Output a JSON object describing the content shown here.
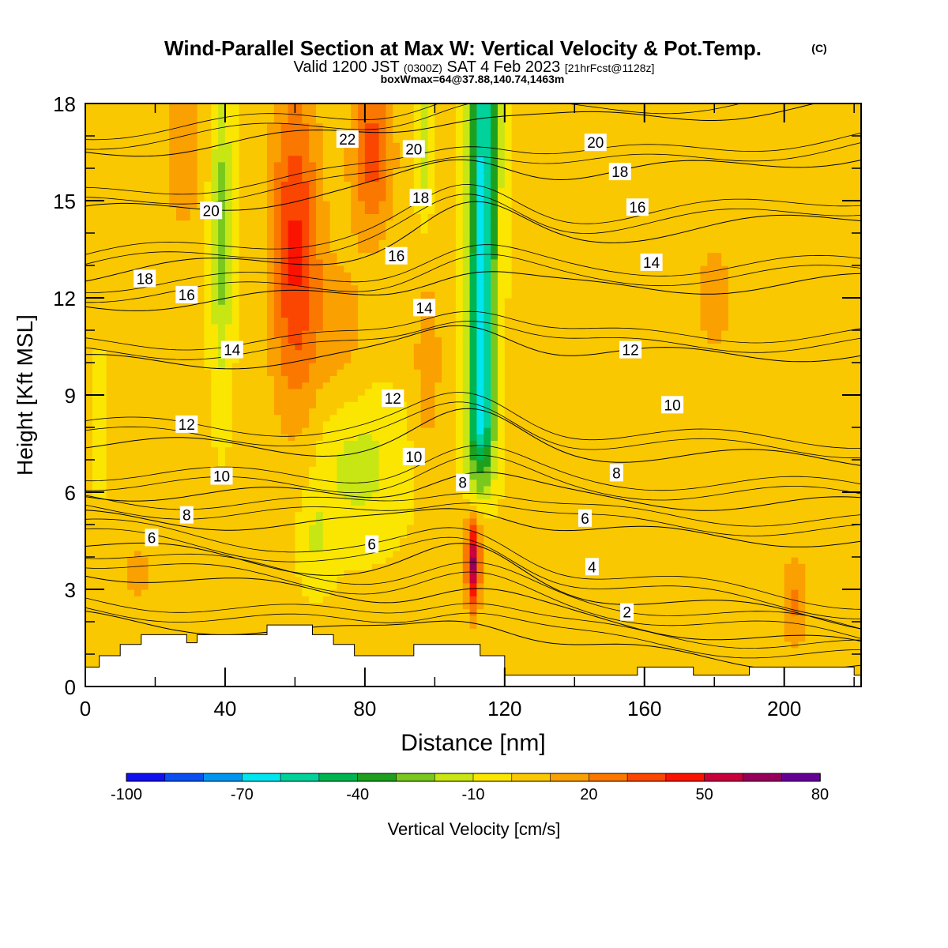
{
  "chart_data": {
    "type": "heatmap",
    "title": "Wind-Parallel Section at Max W: Vertical Velocity & Pot.Temp.",
    "title_mark": "(C)",
    "subtitle": {
      "main_a": "Valid 1200 JST",
      "small_a": "(0300Z)",
      "main_b": "SAT 4 Feb 2023",
      "small_b": "[21hrFcst@1128z]"
    },
    "subtitle2": "boxWmax=64@37.88,140.74,1463m",
    "xlabel": "Distance [nm]",
    "ylabel": "Height [Kft MSL]",
    "xlim": [
      0,
      222
    ],
    "ylim": [
      0,
      18
    ],
    "x_ticks": [
      "0",
      "40",
      "80",
      "120",
      "160",
      "200"
    ],
    "y_ticks": [
      "0",
      "3",
      "6",
      "9",
      "12",
      "15",
      "18"
    ],
    "colorbar": {
      "label": "Vertical Velocity [cm/s]",
      "tick_labels": [
        "-100",
        "-70",
        "-40",
        "-10",
        "20",
        "50",
        "80"
      ],
      "levels": [
        -100,
        -90,
        -80,
        -70,
        -60,
        -50,
        -40,
        -30,
        -20,
        -10,
        0,
        10,
        20,
        30,
        40,
        50,
        60,
        70,
        80
      ],
      "colors": [
        "#1010f0",
        "#0a50f0",
        "#0096f0",
        "#00e6f0",
        "#00d29b",
        "#00b450",
        "#1ea01e",
        "#78c81e",
        "#c8e614",
        "#fae600",
        "#fac800",
        "#faa000",
        "#fa7800",
        "#fa4600",
        "#fa1400",
        "#c8003c",
        "#96005a",
        "#640096"
      ]
    },
    "contour_labels": [
      {
        "text": "22",
        "x": 75,
        "y": 16.9
      },
      {
        "text": "20",
        "x": 94,
        "y": 16.6
      },
      {
        "text": "20",
        "x": 146,
        "y": 16.8
      },
      {
        "text": "18",
        "x": 153,
        "y": 15.9
      },
      {
        "text": "20",
        "x": 36,
        "y": 14.7
      },
      {
        "text": "18",
        "x": 96,
        "y": 15.1
      },
      {
        "text": "16",
        "x": 158,
        "y": 14.8
      },
      {
        "text": "16",
        "x": 89,
        "y": 13.3
      },
      {
        "text": "14",
        "x": 162,
        "y": 13.1
      },
      {
        "text": "18",
        "x": 17,
        "y": 12.6
      },
      {
        "text": "16",
        "x": 29,
        "y": 12.1
      },
      {
        "text": "14",
        "x": 97,
        "y": 11.7
      },
      {
        "text": "14",
        "x": 42,
        "y": 10.4
      },
      {
        "text": "12",
        "x": 156,
        "y": 10.4
      },
      {
        "text": "12",
        "x": 88,
        "y": 8.9
      },
      {
        "text": "10",
        "x": 168,
        "y": 8.7
      },
      {
        "text": "12",
        "x": 29,
        "y": 8.1
      },
      {
        "text": "10",
        "x": 94,
        "y": 7.1
      },
      {
        "text": "10",
        "x": 39,
        "y": 6.5
      },
      {
        "text": "8",
        "x": 108,
        "y": 6.3
      },
      {
        "text": "8",
        "x": 152,
        "y": 6.6
      },
      {
        "text": "8",
        "x": 29,
        "y": 5.3
      },
      {
        "text": "6",
        "x": 143,
        "y": 5.2
      },
      {
        "text": "6",
        "x": 19,
        "y": 4.6
      },
      {
        "text": "6",
        "x": 82,
        "y": 4.4
      },
      {
        "text": "4",
        "x": 145,
        "y": 3.7
      },
      {
        "text": "2",
        "x": 155,
        "y": 2.3
      }
    ],
    "theta_contours": [
      {
        "level": 2,
        "left": 2.1,
        "right": 0.6,
        "dip": 2.4
      },
      {
        "level": 4,
        "left": 3.6,
        "right": 1.2,
        "dip": 3.2
      },
      {
        "level": 6,
        "left": 4.4,
        "right": 2.0,
        "dip": 4.4
      },
      {
        "level": 8,
        "left": 5.2,
        "right": 4.5,
        "dip": 5.8
      },
      {
        "level": 10,
        "left": 6.0,
        "right": 5.6,
        "dip": 6.9
      },
      {
        "level": 12,
        "left": 7.5,
        "right": 7.0,
        "dip": 8.6
      },
      {
        "level": 14,
        "left": 10.0,
        "right": 10.3,
        "dip": 11.5
      },
      {
        "level": 16,
        "left": 11.8,
        "right": 12.5,
        "dip": 13.1
      },
      {
        "level": 18,
        "left": 12.7,
        "right": 14.5,
        "dip": 15.0
      },
      {
        "level": 20,
        "left": 14.6,
        "right": 16.4,
        "dip": 16.5
      },
      {
        "level": 22,
        "left": 16.5,
        "right": 18.0,
        "dip": 17.8
      }
    ],
    "terrain": [
      [
        0,
        0.6
      ],
      [
        4,
        0.6
      ],
      [
        4,
        0.95
      ],
      [
        10,
        0.95
      ],
      [
        10,
        1.3
      ],
      [
        16,
        1.3
      ],
      [
        16,
        1.6
      ],
      [
        29,
        1.6
      ],
      [
        29,
        1.35
      ],
      [
        32,
        1.35
      ],
      [
        32,
        1.6
      ],
      [
        52,
        1.6
      ],
      [
        52,
        1.9
      ],
      [
        65,
        1.9
      ],
      [
        65,
        1.6
      ],
      [
        71,
        1.6
      ],
      [
        71,
        1.3
      ],
      [
        77,
        1.3
      ],
      [
        77,
        0.95
      ],
      [
        94,
        0.95
      ],
      [
        94,
        1.3
      ],
      [
        113,
        1.3
      ],
      [
        113,
        0.95
      ],
      [
        120,
        0.95
      ],
      [
        120,
        0.35
      ],
      [
        158,
        0.35
      ],
      [
        158,
        0.6
      ],
      [
        174,
        0.6
      ],
      [
        174,
        0.35
      ],
      [
        190,
        0.35
      ],
      [
        190,
        0.6
      ],
      [
        220,
        0.6
      ],
      [
        220,
        0.35
      ],
      [
        222,
        0.35
      ],
      [
        222,
        0
      ]
    ],
    "w_features": [
      {
        "x": 60,
        "y": 13.5,
        "sx": 7,
        "sy": 5.0,
        "w": 40
      },
      {
        "x": 82,
        "y": 16.5,
        "sx": 6,
        "sy": 2.5,
        "w": 32
      },
      {
        "x": 28,
        "y": 16.5,
        "sx": 5,
        "sy": 2.5,
        "w": 18
      },
      {
        "x": 98,
        "y": 10.0,
        "sx": 4,
        "sy": 3.0,
        "w": 15
      },
      {
        "x": 73,
        "y": 11.0,
        "sx": 8,
        "sy": 2.5,
        "w": 12
      },
      {
        "x": 111,
        "y": 3.8,
        "sx": 2,
        "sy": 1.4,
        "w": 60
      },
      {
        "x": 39,
        "y": 14.0,
        "sx": 3,
        "sy": 4.5,
        "w": -28
      },
      {
        "x": 97,
        "y": 16.5,
        "sx": 2,
        "sy": 2.0,
        "w": -20
      },
      {
        "x": 78,
        "y": 6.8,
        "sx": 13,
        "sy": 2.2,
        "w": -16
      },
      {
        "x": 66,
        "y": 4.5,
        "sx": 5,
        "sy": 1.4,
        "w": -12
      },
      {
        "x": 4,
        "y": 8.0,
        "sx": 2,
        "sy": 2.0,
        "w": -10
      },
      {
        "x": 203,
        "y": 2.6,
        "sx": 4,
        "sy": 1.4,
        "w": 20
      },
      {
        "x": 180,
        "y": 12.0,
        "sx": 12,
        "sy": 4.0,
        "w": 9
      },
      {
        "x": 15,
        "y": 3.5,
        "sx": 8,
        "sy": 2.0,
        "w": 9
      },
      {
        "x": 45,
        "y": 2.8,
        "sx": 8,
        "sy": 1.0,
        "w": 8
      }
    ],
    "updraft_band": {
      "x_bottom": 113,
      "x_top": 114,
      "half_width": 4,
      "w_min": -65,
      "from_y": 5.0
    }
  }
}
